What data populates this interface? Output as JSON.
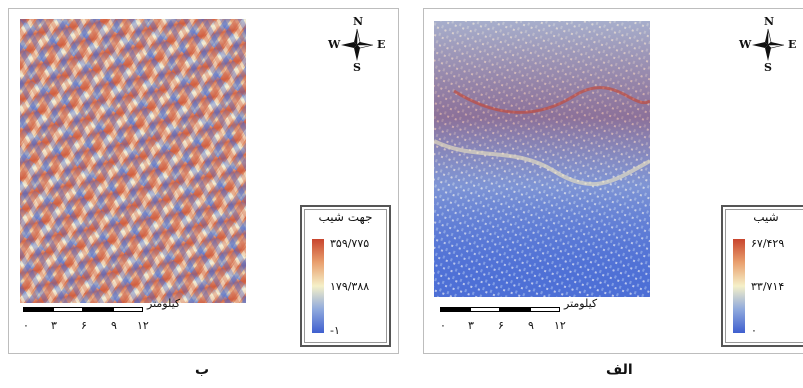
{
  "panels": {
    "b": {
      "caption": "ب",
      "legend_title": "جهت شیب",
      "legend_values": [
        "۳۵۹/۷۷۵",
        "۱۷۹/۳۸۸",
        "-۱"
      ],
      "scale_unit": "کیلومتر",
      "scale_ticks": [
        "۰",
        "۳",
        "۶",
        "۹",
        "۱۲"
      ],
      "map_description": "slope aspect raster (blue–yellow–red)"
    },
    "a": {
      "caption": "الف",
      "legend_title": "شیب",
      "legend_values": [
        "۶۷/۴۲۹",
        "۳۳/۷۱۴",
        "۰"
      ],
      "scale_unit": "کیلومتر",
      "scale_ticks": [
        "۰",
        "۳",
        "۶",
        "۹",
        "۱۲"
      ],
      "map_description": "slope raster (mostly blue)"
    }
  },
  "compass": {
    "n": "N",
    "s": "S",
    "e": "E",
    "w": "W"
  },
  "colors": {
    "high": "#c8452e",
    "mid": "#f5f0c8",
    "low": "#3f5fcf"
  }
}
